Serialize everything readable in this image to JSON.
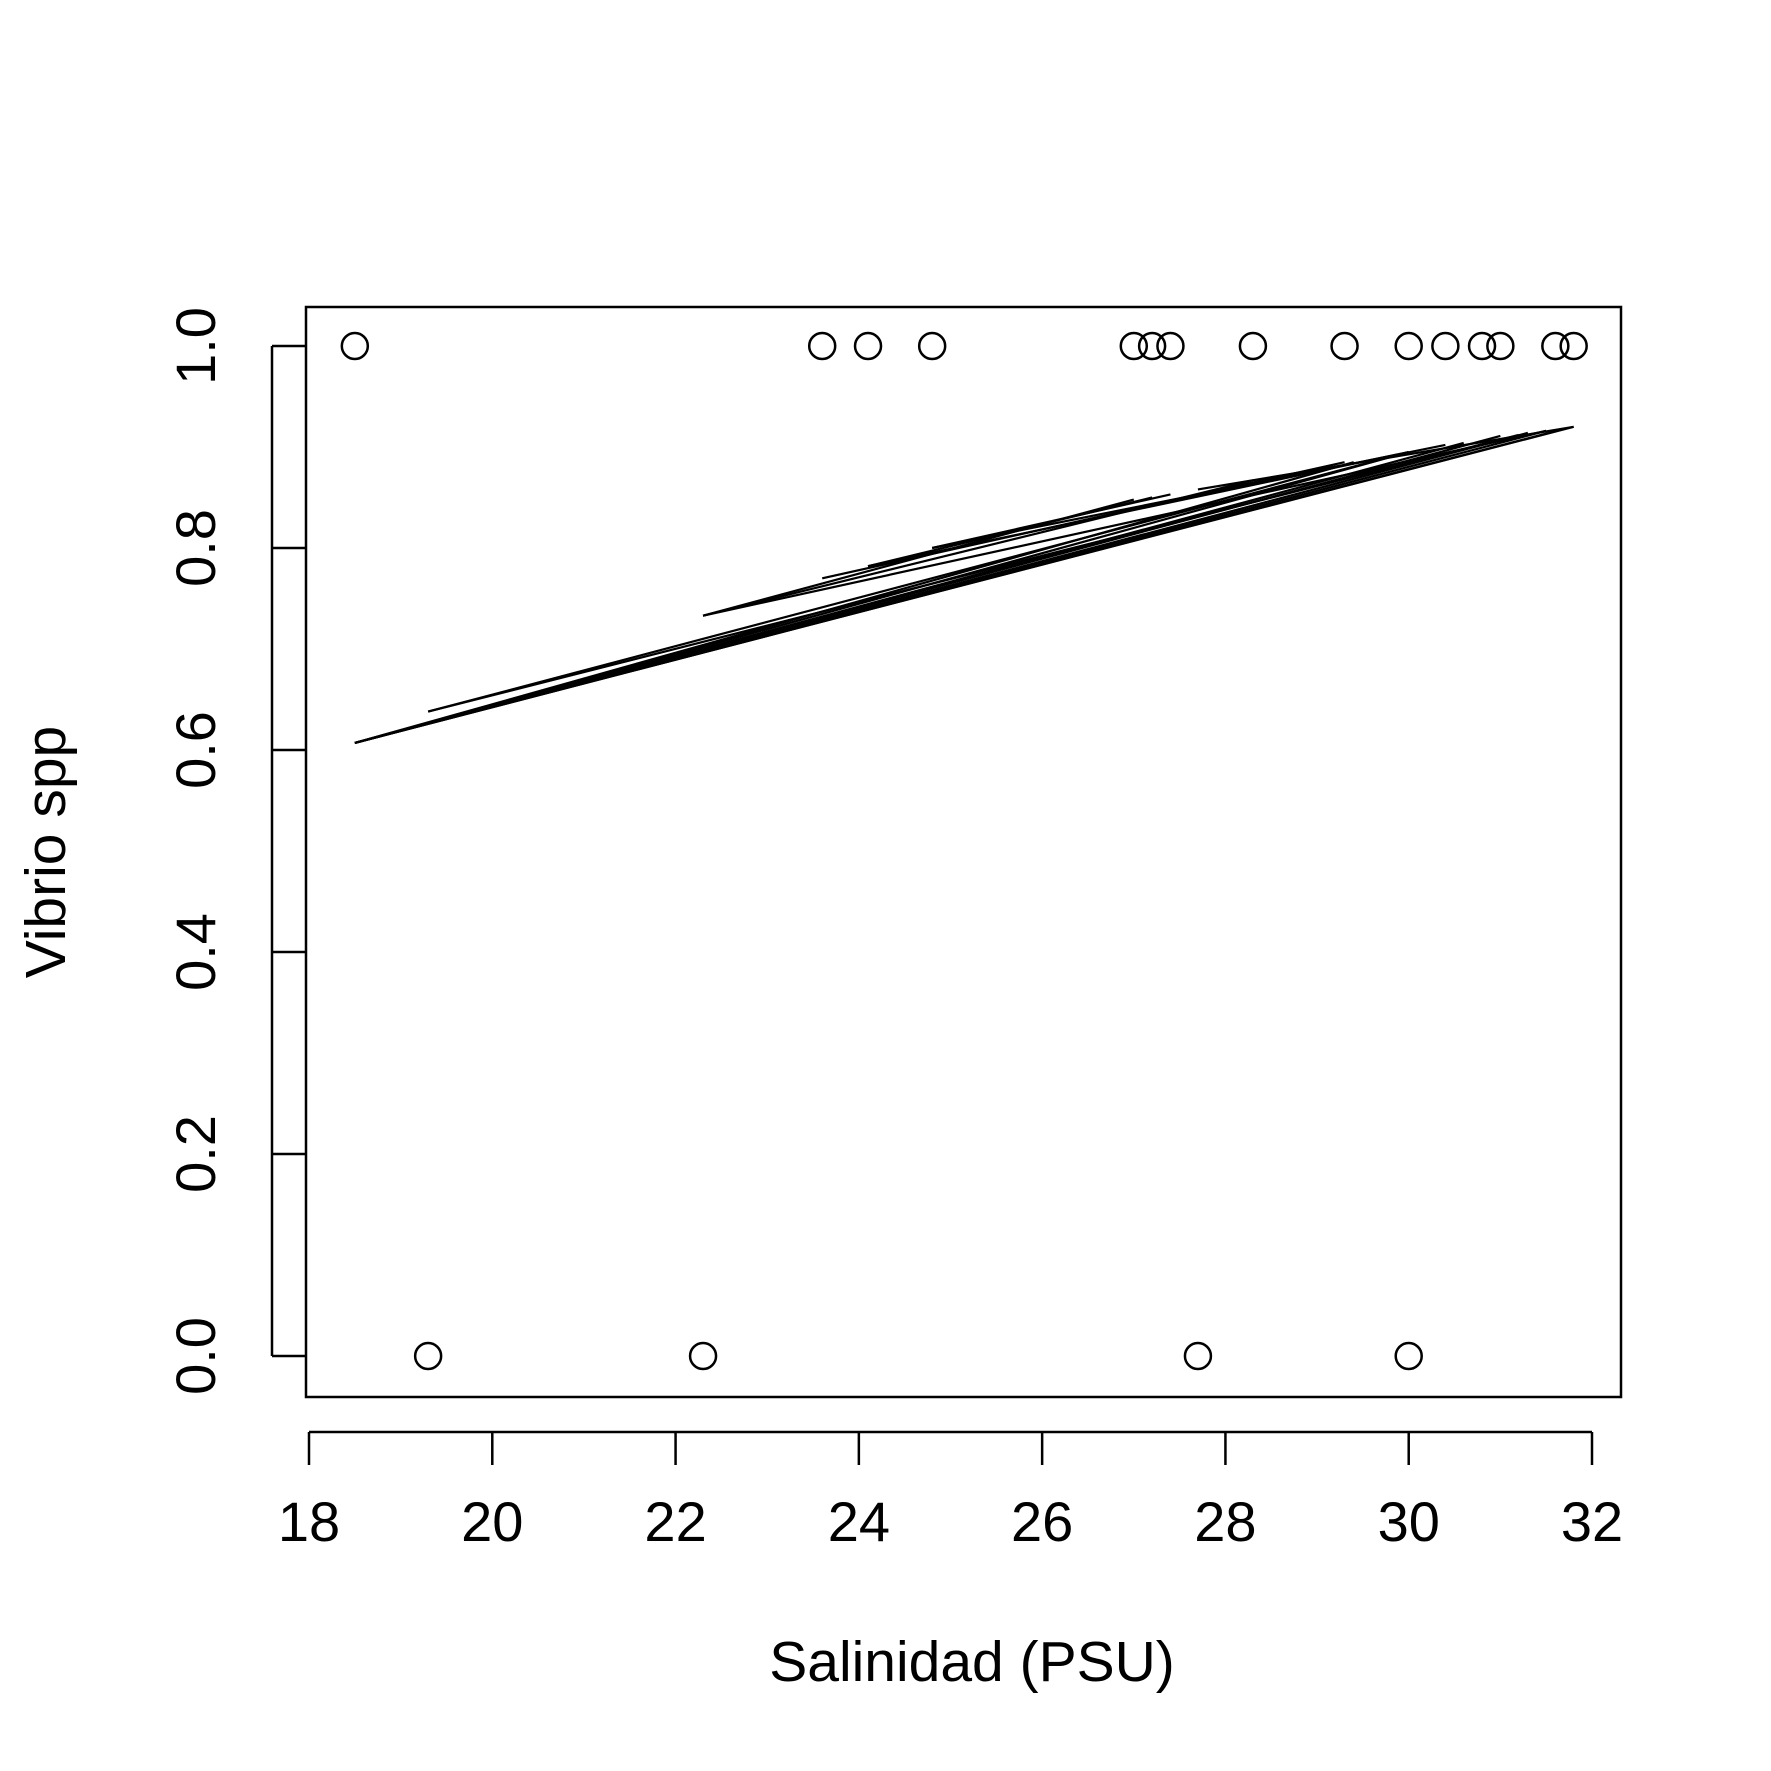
{
  "chart_data": {
    "type": "scatter",
    "xlabel": "Salinidad (PSU)",
    "ylabel": "Vibrio spp",
    "xlim": [
      18,
      32
    ],
    "ylim": [
      0.0,
      1.0
    ],
    "x_ticks": [
      18,
      20,
      22,
      24,
      26,
      28,
      30,
      32
    ],
    "x_tick_labels": [
      "18",
      "20",
      "22",
      "24",
      "26",
      "28",
      "30",
      "32"
    ],
    "y_ticks": [
      0.0,
      0.2,
      0.4,
      0.6,
      0.8,
      1.0
    ],
    "y_tick_labels": [
      "0.0",
      "0.2",
      "0.4",
      "0.6",
      "0.8",
      "1.0"
    ],
    "grid": false,
    "legend": "none",
    "colors": {
      "ink": "#000000",
      "background": "#ffffff"
    },
    "points": [
      {
        "x": 18.5,
        "y": 1
      },
      {
        "x": 23.6,
        "y": 1
      },
      {
        "x": 24.1,
        "y": 1
      },
      {
        "x": 24.8,
        "y": 1
      },
      {
        "x": 27.0,
        "y": 1
      },
      {
        "x": 27.2,
        "y": 1
      },
      {
        "x": 27.4,
        "y": 1
      },
      {
        "x": 28.3,
        "y": 1
      },
      {
        "x": 29.3,
        "y": 1
      },
      {
        "x": 30.0,
        "y": 1
      },
      {
        "x": 30.4,
        "y": 1
      },
      {
        "x": 30.8,
        "y": 1
      },
      {
        "x": 31.0,
        "y": 1
      },
      {
        "x": 31.6,
        "y": 1
      },
      {
        "x": 31.8,
        "y": 1
      },
      {
        "x": 19.3,
        "y": 0
      },
      {
        "x": 22.3,
        "y": 0
      },
      {
        "x": 27.7,
        "y": 0
      },
      {
        "x": 30.0,
        "y": 0
      }
    ],
    "series": [
      {
        "x": [
          18.5,
          31.8
        ],
        "y": [
          0.607,
          0.92
        ]
      },
      {
        "x": [
          18.5,
          31.7
        ],
        "y": [
          0.607,
          0.918
        ]
      },
      {
        "x": [
          18.5,
          31.5
        ],
        "y": [
          0.607,
          0.916
        ]
      },
      {
        "x": [
          18.5,
          31.3
        ],
        "y": [
          0.607,
          0.914
        ]
      },
      {
        "x": [
          18.5,
          31.0
        ],
        "y": [
          0.607,
          0.911
        ]
      },
      {
        "x": [
          18.5,
          30.6
        ],
        "y": [
          0.607,
          0.904
        ]
      },
      {
        "x": [
          18.5,
          30.0
        ],
        "y": [
          0.607,
          0.895
        ]
      },
      {
        "x": [
          18.5,
          29.4
        ],
        "y": [
          0.607,
          0.885
        ]
      },
      {
        "x": [
          19.3,
          31.2
        ],
        "y": [
          0.638,
          0.912
        ]
      },
      {
        "x": [
          19.3,
          30.0
        ],
        "y": [
          0.638,
          0.895
        ]
      },
      {
        "x": [
          22.3,
          31.5
        ],
        "y": [
          0.733,
          0.916
        ]
      },
      {
        "x": [
          22.3,
          28.3
        ],
        "y": [
          0.733,
          0.867
        ]
      },
      {
        "x": [
          22.3,
          27.0
        ],
        "y": [
          0.733,
          0.848
        ]
      },
      {
        "x": [
          23.6,
          29.3
        ],
        "y": [
          0.77,
          0.885
        ]
      },
      {
        "x": [
          24.1,
          30.0
        ],
        "y": [
          0.782,
          0.895
        ]
      },
      {
        "x": [
          24.1,
          27.2
        ],
        "y": [
          0.782,
          0.85
        ]
      },
      {
        "x": [
          24.8,
          30.4
        ],
        "y": [
          0.8,
          0.902
        ]
      },
      {
        "x": [
          24.8,
          27.4
        ],
        "y": [
          0.8,
          0.853
        ]
      },
      {
        "x": [
          27.7,
          31.8
        ],
        "y": [
          0.858,
          0.92
        ]
      }
    ]
  }
}
